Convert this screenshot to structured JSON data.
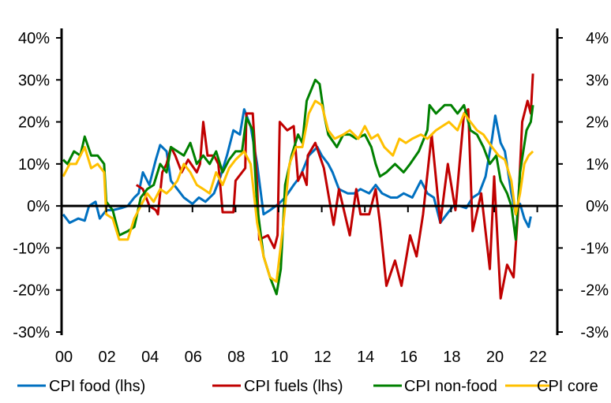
{
  "chart_data": {
    "type": "line",
    "y_left": {
      "min": -30,
      "max": 40,
      "ticks": [
        "-30%",
        "-20%",
        "-10%",
        "0%",
        "10%",
        "20%",
        "30%",
        "40%"
      ],
      "tick_values": [
        -30,
        -20,
        -10,
        0,
        10,
        20,
        30,
        40
      ]
    },
    "y_right": {
      "min": -3,
      "max": 4,
      "ticks": [
        "-3%",
        "-2%",
        "-1%",
        "0%",
        "1%",
        "2%",
        "3%",
        "4%"
      ],
      "tick_values": [
        -3,
        -2,
        -1,
        0,
        1,
        2,
        3,
        4
      ]
    },
    "x_axis": {
      "ticks": [
        "00",
        "02",
        "04",
        "06",
        "08",
        "10",
        "12",
        "14",
        "16",
        "18",
        "20",
        "22"
      ],
      "tick_values": [
        2000,
        2002,
        2004,
        2006,
        2008,
        2010,
        2012,
        2014,
        2016,
        2018,
        2020,
        2022
      ],
      "min": 2000,
      "max": 2022.8
    },
    "grid": false,
    "legend_position": "bottom",
    "series": [
      {
        "name": "CPI food (lhs)",
        "axis": "left",
        "color": "#0070C0",
        "points": [
          [
            2000.0,
            -2
          ],
          [
            2000.3,
            -4
          ],
          [
            2000.7,
            -3
          ],
          [
            2001.0,
            -3.5
          ],
          [
            2001.2,
            0
          ],
          [
            2001.5,
            1
          ],
          [
            2001.7,
            -3
          ],
          [
            2002.0,
            -1
          ],
          [
            2002.3,
            -1
          ],
          [
            2002.7,
            -0.5
          ],
          [
            2003.0,
            0
          ],
          [
            2003.3,
            2
          ],
          [
            2003.5,
            3
          ],
          [
            2003.7,
            8
          ],
          [
            2004.0,
            5
          ],
          [
            2004.3,
            11
          ],
          [
            2004.5,
            14.5
          ],
          [
            2004.8,
            13
          ],
          [
            2005.0,
            6
          ],
          [
            2005.3,
            4
          ],
          [
            2005.6,
            2
          ],
          [
            2006.0,
            0.5
          ],
          [
            2006.3,
            2
          ],
          [
            2006.6,
            1
          ],
          [
            2007.0,
            3
          ],
          [
            2007.3,
            7
          ],
          [
            2007.6,
            12
          ],
          [
            2007.9,
            18
          ],
          [
            2008.2,
            17
          ],
          [
            2008.4,
            23
          ],
          [
            2008.7,
            19
          ],
          [
            2009.0,
            10
          ],
          [
            2009.3,
            -2
          ],
          [
            2009.6,
            -1
          ],
          [
            2010.0,
            0.5
          ],
          [
            2010.3,
            2
          ],
          [
            2010.7,
            5
          ],
          [
            2011.0,
            7
          ],
          [
            2011.4,
            12
          ],
          [
            2011.8,
            14
          ],
          [
            2012.0,
            12
          ],
          [
            2012.3,
            10
          ],
          [
            2012.5,
            8
          ],
          [
            2012.8,
            4
          ],
          [
            2013.2,
            3
          ],
          [
            2013.5,
            3
          ],
          [
            2013.8,
            4
          ],
          [
            2014.2,
            3
          ],
          [
            2014.5,
            5
          ],
          [
            2014.8,
            3
          ],
          [
            2015.2,
            2
          ],
          [
            2015.5,
            2
          ],
          [
            2015.8,
            3
          ],
          [
            2016.2,
            2
          ],
          [
            2016.6,
            6
          ],
          [
            2016.9,
            3
          ],
          [
            2017.2,
            2
          ],
          [
            2017.5,
            -4
          ],
          [
            2017.8,
            -2
          ],
          [
            2018.1,
            0
          ],
          [
            2018.4,
            0
          ],
          [
            2018.7,
            -0.5
          ],
          [
            2019.0,
            2
          ],
          [
            2019.3,
            3
          ],
          [
            2019.6,
            7
          ],
          [
            2019.9,
            16
          ],
          [
            2020.05,
            21.5
          ],
          [
            2020.3,
            15
          ],
          [
            2020.5,
            13
          ],
          [
            2020.8,
            3
          ],
          [
            2021.0,
            -2
          ],
          [
            2021.2,
            0.5
          ],
          [
            2021.4,
            -3
          ],
          [
            2021.6,
            -5
          ],
          [
            2021.7,
            -2.5
          ]
        ]
      },
      {
        "name": "CPI fuels (lhs)",
        "axis": "left",
        "color": "#C00000",
        "points": [
          [
            2003.4,
            5
          ],
          [
            2003.7,
            4
          ],
          [
            2004.0,
            0
          ],
          [
            2004.3,
            -1
          ],
          [
            2004.4,
            -2
          ],
          [
            2004.6,
            8
          ],
          [
            2004.8,
            10
          ],
          [
            2005.0,
            14
          ],
          [
            2005.2,
            12
          ],
          [
            2005.5,
            8
          ],
          [
            2005.8,
            11
          ],
          [
            2006.2,
            8
          ],
          [
            2006.35,
            10
          ],
          [
            2006.5,
            20
          ],
          [
            2006.7,
            12
          ],
          [
            2007.0,
            12
          ],
          [
            2007.2,
            10
          ],
          [
            2007.4,
            -1.5
          ],
          [
            2007.9,
            -1.5
          ],
          [
            2008.0,
            6
          ],
          [
            2008.3,
            8
          ],
          [
            2008.45,
            9
          ],
          [
            2008.5,
            22
          ],
          [
            2008.8,
            22
          ],
          [
            2009.0,
            5
          ],
          [
            2009.1,
            -8
          ],
          [
            2009.5,
            -7
          ],
          [
            2009.8,
            -10
          ],
          [
            2009.95,
            -7
          ],
          [
            2010.05,
            20
          ],
          [
            2010.4,
            18
          ],
          [
            2010.7,
            19
          ],
          [
            2010.9,
            6
          ],
          [
            2011.1,
            8
          ],
          [
            2011.3,
            5
          ],
          [
            2011.35,
            12
          ],
          [
            2011.7,
            15
          ],
          [
            2012.1,
            9
          ],
          [
            2012.55,
            -4.5
          ],
          [
            2012.8,
            4
          ],
          [
            2013.3,
            -7
          ],
          [
            2013.6,
            4
          ],
          [
            2013.8,
            -2
          ],
          [
            2014.2,
            -2
          ],
          [
            2014.5,
            4
          ],
          [
            2014.7,
            -4
          ],
          [
            2015.0,
            -19
          ],
          [
            2015.4,
            -13
          ],
          [
            2015.7,
            -19
          ],
          [
            2016.1,
            -7
          ],
          [
            2016.4,
            -12
          ],
          [
            2016.7,
            -2
          ],
          [
            2017.1,
            17
          ],
          [
            2017.5,
            -4
          ],
          [
            2017.85,
            10
          ],
          [
            2018.2,
            -1
          ],
          [
            2018.6,
            22
          ],
          [
            2018.8,
            23
          ],
          [
            2019.0,
            -6
          ],
          [
            2019.4,
            3
          ],
          [
            2019.8,
            -15
          ],
          [
            2020.0,
            7
          ],
          [
            2020.3,
            -22
          ],
          [
            2020.6,
            -14
          ],
          [
            2020.9,
            -17
          ],
          [
            2021.1,
            -2
          ],
          [
            2021.3,
            20
          ],
          [
            2021.55,
            25
          ],
          [
            2021.7,
            22
          ],
          [
            2021.8,
            31.5
          ]
        ]
      },
      {
        "name": "CPI non-food",
        "axis": "right",
        "color": "#008000",
        "points": [
          [
            2000.0,
            1.1
          ],
          [
            2000.2,
            1.0
          ],
          [
            2000.5,
            1.3
          ],
          [
            2000.8,
            1.2
          ],
          [
            2001.0,
            1.65
          ],
          [
            2001.3,
            1.2
          ],
          [
            2001.6,
            1.2
          ],
          [
            2001.9,
            1.0
          ],
          [
            2002.0,
            0.1
          ],
          [
            2002.3,
            -0.1
          ],
          [
            2002.6,
            -0.7
          ],
          [
            2003.0,
            -0.6
          ],
          [
            2003.3,
            -0.5
          ],
          [
            2003.6,
            0.2
          ],
          [
            2003.9,
            0.4
          ],
          [
            2004.2,
            0.5
          ],
          [
            2004.5,
            1.0
          ],
          [
            2004.8,
            0.8
          ],
          [
            2005.0,
            1.4
          ],
          [
            2005.3,
            1.3
          ],
          [
            2005.6,
            1.2
          ],
          [
            2005.9,
            1.5
          ],
          [
            2006.2,
            1.0
          ],
          [
            2006.5,
            1.2
          ],
          [
            2006.8,
            1.0
          ],
          [
            2007.1,
            1.3
          ],
          [
            2007.4,
            0.8
          ],
          [
            2007.7,
            1.1
          ],
          [
            2008.0,
            1.3
          ],
          [
            2008.3,
            1.3
          ],
          [
            2008.5,
            2.1
          ],
          [
            2008.8,
            1.8
          ],
          [
            2009.0,
            0.0
          ],
          [
            2009.3,
            -1.2
          ],
          [
            2009.6,
            -1.7
          ],
          [
            2009.9,
            -2.1
          ],
          [
            2010.1,
            -1.5
          ],
          [
            2010.3,
            0.5
          ],
          [
            2010.6,
            1.2
          ],
          [
            2010.9,
            1.7
          ],
          [
            2011.1,
            1.5
          ],
          [
            2011.3,
            2.5
          ],
          [
            2011.7,
            3.0
          ],
          [
            2011.9,
            2.9
          ],
          [
            2012.1,
            2.2
          ],
          [
            2012.3,
            1.7
          ],
          [
            2012.7,
            1.4
          ],
          [
            2013.0,
            1.7
          ],
          [
            2013.3,
            1.7
          ],
          [
            2013.6,
            1.6
          ],
          [
            2014.0,
            1.7
          ],
          [
            2014.3,
            1.4
          ],
          [
            2014.5,
            1.0
          ],
          [
            2014.7,
            0.7
          ],
          [
            2015.0,
            0.8
          ],
          [
            2015.4,
            1.0
          ],
          [
            2015.8,
            0.8
          ],
          [
            2016.1,
            1.0
          ],
          [
            2016.5,
            1.3
          ],
          [
            2016.9,
            1.8
          ],
          [
            2017.0,
            2.4
          ],
          [
            2017.3,
            2.2
          ],
          [
            2017.7,
            2.4
          ],
          [
            2018.0,
            2.4
          ],
          [
            2018.3,
            2.2
          ],
          [
            2018.6,
            2.4
          ],
          [
            2018.9,
            1.8
          ],
          [
            2019.2,
            1.7
          ],
          [
            2019.5,
            1.4
          ],
          [
            2019.8,
            1.0
          ],
          [
            2020.1,
            1.2
          ],
          [
            2020.3,
            0.6
          ],
          [
            2020.6,
            0.3
          ],
          [
            2020.8,
            0.0
          ],
          [
            2021.0,
            -0.8
          ],
          [
            2021.2,
            0.8
          ],
          [
            2021.5,
            1.8
          ],
          [
            2021.7,
            2.0
          ],
          [
            2021.8,
            2.4
          ]
        ]
      },
      {
        "name": "CPI core",
        "axis": "right",
        "color": "#FFC000",
        "points": [
          [
            2000.0,
            0.7
          ],
          [
            2000.3,
            1.0
          ],
          [
            2000.6,
            1.0
          ],
          [
            2001.0,
            1.4
          ],
          [
            2001.3,
            0.9
          ],
          [
            2001.6,
            1.0
          ],
          [
            2001.9,
            0.8
          ],
          [
            2002.0,
            -0.2
          ],
          [
            2002.3,
            -0.3
          ],
          [
            2002.6,
            -0.8
          ],
          [
            2003.0,
            -0.8
          ],
          [
            2003.3,
            -0.3
          ],
          [
            2003.6,
            0.0
          ],
          [
            2003.9,
            0.3
          ],
          [
            2004.2,
            0.1
          ],
          [
            2004.5,
            0.4
          ],
          [
            2004.8,
            0.3
          ],
          [
            2005.0,
            0.4
          ],
          [
            2005.3,
            0.6
          ],
          [
            2005.6,
            1.0
          ],
          [
            2005.9,
            0.8
          ],
          [
            2006.2,
            0.5
          ],
          [
            2006.5,
            0.4
          ],
          [
            2006.8,
            0.3
          ],
          [
            2007.1,
            0.8
          ],
          [
            2007.4,
            0.5
          ],
          [
            2007.7,
            0.9
          ],
          [
            2008.0,
            1.1
          ],
          [
            2008.4,
            1.3
          ],
          [
            2008.7,
            1.0
          ],
          [
            2009.0,
            -0.4
          ],
          [
            2009.3,
            -1.2
          ],
          [
            2009.6,
            -1.7
          ],
          [
            2009.9,
            -1.8
          ],
          [
            2010.2,
            -0.5
          ],
          [
            2010.5,
            1.0
          ],
          [
            2010.8,
            1.4
          ],
          [
            2011.1,
            1.4
          ],
          [
            2011.4,
            2.2
          ],
          [
            2011.7,
            2.5
          ],
          [
            2012.0,
            2.4
          ],
          [
            2012.3,
            1.8
          ],
          [
            2012.6,
            1.6
          ],
          [
            2013.0,
            1.7
          ],
          [
            2013.3,
            1.8
          ],
          [
            2013.7,
            1.6
          ],
          [
            2014.0,
            1.9
          ],
          [
            2014.3,
            1.6
          ],
          [
            2014.6,
            1.7
          ],
          [
            2014.9,
            1.4
          ],
          [
            2015.3,
            1.2
          ],
          [
            2015.6,
            1.6
          ],
          [
            2015.9,
            1.5
          ],
          [
            2016.2,
            1.6
          ],
          [
            2016.6,
            1.7
          ],
          [
            2016.9,
            1.6
          ],
          [
            2017.3,
            1.8
          ],
          [
            2017.6,
            1.9
          ],
          [
            2017.9,
            2.0
          ],
          [
            2018.3,
            1.8
          ],
          [
            2018.6,
            2.2
          ],
          [
            2018.9,
            2.0
          ],
          [
            2019.2,
            1.8
          ],
          [
            2019.5,
            1.7
          ],
          [
            2019.9,
            1.4
          ],
          [
            2020.2,
            1.2
          ],
          [
            2020.5,
            1.1
          ],
          [
            2020.8,
            0.6
          ],
          [
            2021.0,
            -0.2
          ],
          [
            2021.2,
            0.3
          ],
          [
            2021.4,
            1.0
          ],
          [
            2021.6,
            1.2
          ],
          [
            2021.8,
            1.3
          ]
        ]
      }
    ]
  }
}
